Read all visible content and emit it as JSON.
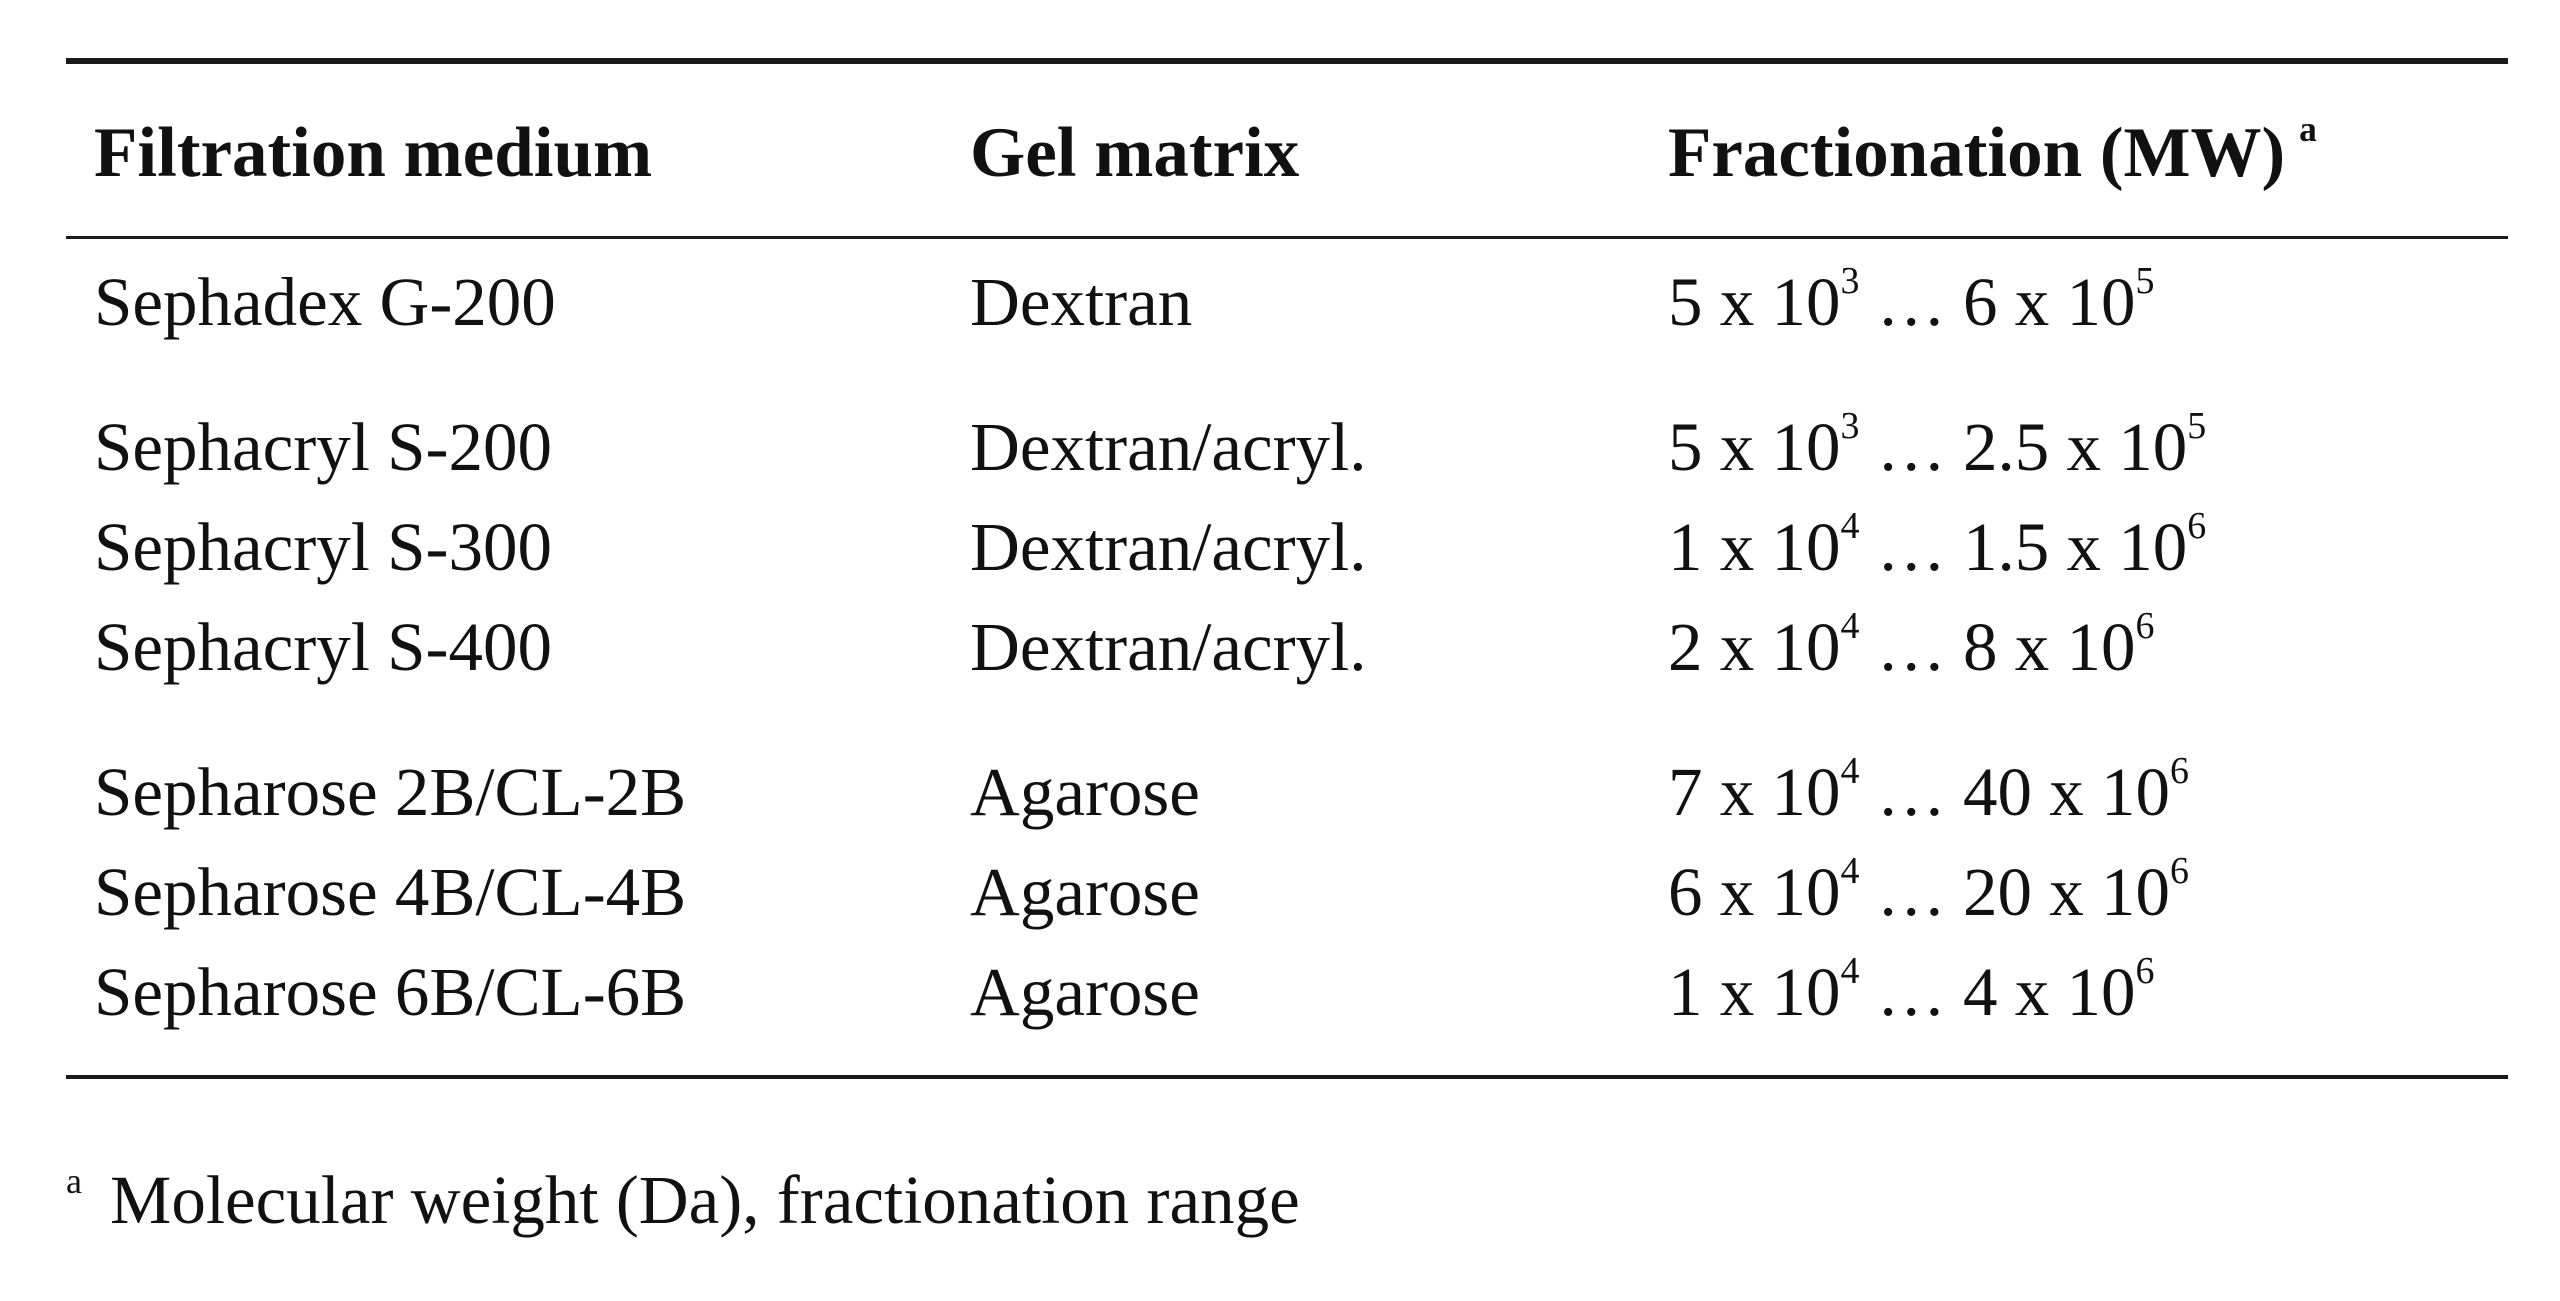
{
  "table": {
    "headers": {
      "medium": "Filtration medium",
      "matrix": "Gel matrix",
      "fractionation": "Fractionation (MW)",
      "fractionation_note": "a"
    },
    "rows": [
      {
        "medium": "Sephadex G-200",
        "matrix": "Dextran",
        "low_mant": "5 x 10",
        "low_exp": "3",
        "sep": " … ",
        "high_mant": "6 x 10",
        "high_exp": "5"
      },
      {
        "medium": "Sephacryl S-200",
        "matrix": "Dextran/acryl.",
        "low_mant": "5 x 10",
        "low_exp": "3",
        "sep": " … ",
        "high_mant": "2.5 x 10",
        "high_exp": "5"
      },
      {
        "medium": "Sephacryl S-300",
        "matrix": "Dextran/acryl.",
        "low_mant": "1 x 10",
        "low_exp": "4",
        "sep": " … ",
        "high_mant": "1.5 x 10",
        "high_exp": "6"
      },
      {
        "medium": "Sephacryl S-400",
        "matrix": "Dextran/acryl.",
        "low_mant": "2 x 10",
        "low_exp": "4",
        "sep": " … ",
        "high_mant": "8 x 10",
        "high_exp": "6"
      },
      {
        "medium": "Sepharose 2B/CL-2B",
        "matrix": "Agarose",
        "low_mant": "7 x 10",
        "low_exp": "4",
        "sep": " … ",
        "high_mant": "40 x 10",
        "high_exp": "6"
      },
      {
        "medium": "Sepharose 4B/CL-4B",
        "matrix": "Agarose",
        "low_mant": "6 x 10",
        "low_exp": "4",
        "sep": " … ",
        "high_mant": "20 x 10",
        "high_exp": "6"
      },
      {
        "medium": "Sepharose 6B/CL-6B",
        "matrix": "Agarose",
        "low_mant": "1 x 10",
        "low_exp": "4",
        "sep": " … ",
        "high_mant": "4 x 10",
        "high_exp": "6"
      }
    ]
  },
  "footnote": {
    "mark": "a",
    "text": "Molecular weight (Da), fractionation range"
  },
  "colors": {
    "text": "#111111",
    "rules": "#1a1a1a",
    "background": "#ffffff"
  }
}
